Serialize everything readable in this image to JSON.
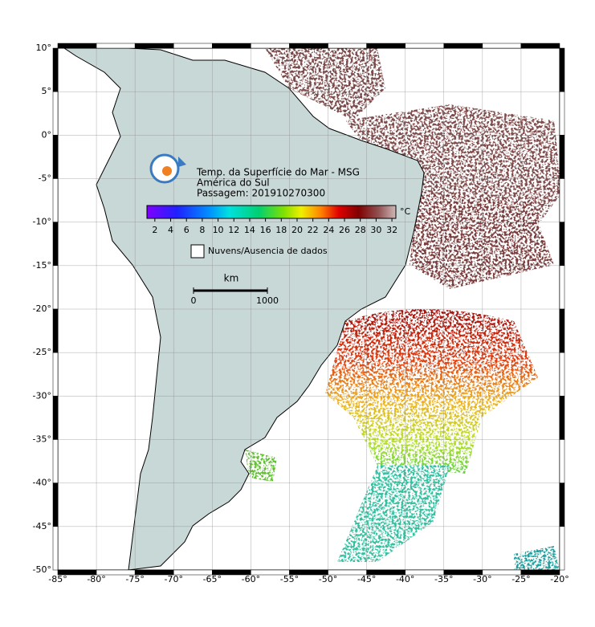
{
  "map": {
    "title_lines": [
      "Temp. da Superfície do Mar - MSG",
      "América do Sul",
      "Passagem: 201910270300"
    ],
    "xlim": [
      -85,
      -20
    ],
    "ylim": [
      -50,
      10
    ],
    "grid": true,
    "xticks": [
      {
        "value": -85,
        "label": "-85°"
      },
      {
        "value": -80,
        "label": "-80°"
      },
      {
        "value": -75,
        "label": "-75°"
      },
      {
        "value": -70,
        "label": "-70°"
      },
      {
        "value": -65,
        "label": "-65°"
      },
      {
        "value": -60,
        "label": "-60°"
      },
      {
        "value": -55,
        "label": "-55°"
      },
      {
        "value": -50,
        "label": "-50°"
      },
      {
        "value": -45,
        "label": "-45°"
      },
      {
        "value": -40,
        "label": "-40°"
      },
      {
        "value": -35,
        "label": "-35°"
      },
      {
        "value": -30,
        "label": "-30°"
      },
      {
        "value": -25,
        "label": "-25°"
      },
      {
        "value": -20,
        "label": "-20°"
      }
    ],
    "yticks": [
      {
        "value": 10,
        "label": "10°"
      },
      {
        "value": 5,
        "label": "5°"
      },
      {
        "value": 0,
        "label": "0°"
      },
      {
        "value": -5,
        "label": "-5°"
      },
      {
        "value": -10,
        "label": "-10°"
      },
      {
        "value": -15,
        "label": "-15°"
      },
      {
        "value": -20,
        "label": "-20°"
      },
      {
        "value": -25,
        "label": "-25°"
      },
      {
        "value": -30,
        "label": "-30°"
      },
      {
        "value": -35,
        "label": "-35°"
      },
      {
        "value": -40,
        "label": "-40°"
      },
      {
        "value": -45,
        "label": "-45°"
      },
      {
        "value": -50,
        "label": "-50°"
      }
    ]
  },
  "colorbar": {
    "lim": [
      1,
      32.5
    ],
    "ticks": [
      2,
      4,
      6,
      8,
      10,
      12,
      14,
      16,
      18,
      20,
      22,
      24,
      26,
      28,
      30,
      32
    ],
    "unit": "°C"
  },
  "legend": {
    "label": "Nuvens/Ausencia de dados"
  },
  "scale_bar": {
    "unit": "km",
    "ticks": [
      0,
      1000
    ]
  }
}
